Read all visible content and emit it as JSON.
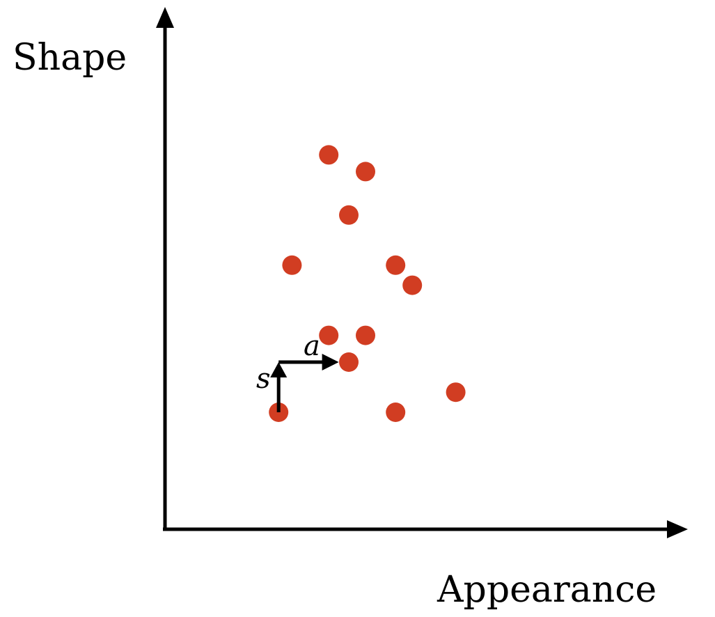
{
  "diagram": {
    "y_axis_label": "Shape",
    "x_axis_label": "Appearance",
    "vector_shape_label": "s",
    "vector_appearance_label": "a",
    "point_color": "#d13d22",
    "axis_color": "#000000",
    "points": [
      {
        "appearance": 4.9,
        "shape": 11.2
      },
      {
        "appearance": 6.0,
        "shape": 10.7
      },
      {
        "appearance": 5.5,
        "shape": 9.4
      },
      {
        "appearance": 3.8,
        "shape": 7.9
      },
      {
        "appearance": 6.9,
        "shape": 7.9
      },
      {
        "appearance": 7.4,
        "shape": 7.3
      },
      {
        "appearance": 4.9,
        "shape": 5.8
      },
      {
        "appearance": 6.0,
        "shape": 5.8
      },
      {
        "appearance": 5.5,
        "shape": 5.0
      },
      {
        "appearance": 3.4,
        "shape": 3.5
      },
      {
        "appearance": 6.9,
        "shape": 3.5
      },
      {
        "appearance": 8.7,
        "shape": 4.1
      }
    ],
    "vector_origin": {
      "appearance": 3.4,
      "shape": 3.5
    },
    "shape_vector": {
      "d_appearance": 0,
      "d_shape": 1.5
    },
    "appearance_vector": {
      "d_appearance": 1.8,
      "d_shape": 0
    }
  }
}
